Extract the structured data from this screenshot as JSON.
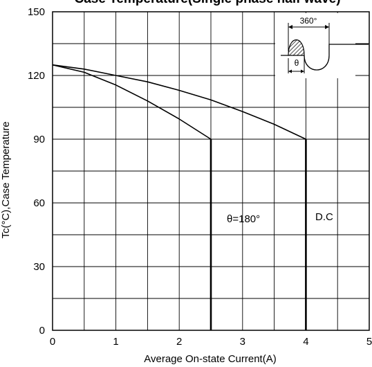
{
  "chart_data": {
    "type": "line",
    "title": "Case Temperature(Single phase half wave)",
    "xlabel": "Average On-state Current(A)",
    "ylabel": "Tc(°C),Case Temperature",
    "xlim": [
      0,
      5
    ],
    "ylim": [
      0,
      150
    ],
    "x_ticks": [
      "0",
      "1",
      "2",
      "3",
      "4",
      "5"
    ],
    "y_ticks": [
      "0",
      "30",
      "60",
      "90",
      "120",
      "150"
    ],
    "grid": true,
    "series": [
      {
        "name": "θ=180°",
        "x": [
          0,
          0.5,
          1.0,
          1.5,
          2.0,
          2.5,
          2.5
        ],
        "y": [
          125,
          121.5,
          115.5,
          108,
          99.5,
          90,
          0
        ]
      },
      {
        "name": "D.C",
        "x": [
          0,
          0.5,
          1.0,
          1.5,
          2.0,
          2.5,
          3.0,
          3.5,
          4.0,
          4.0
        ],
        "y": [
          125,
          123,
          120,
          117,
          113,
          108.5,
          103,
          97,
          90,
          0
        ]
      }
    ],
    "annotations": {
      "theta_label": "θ=180°",
      "dc_label": "D.C"
    },
    "inset": {
      "period_label": "360°",
      "angle_label": "θ"
    }
  }
}
